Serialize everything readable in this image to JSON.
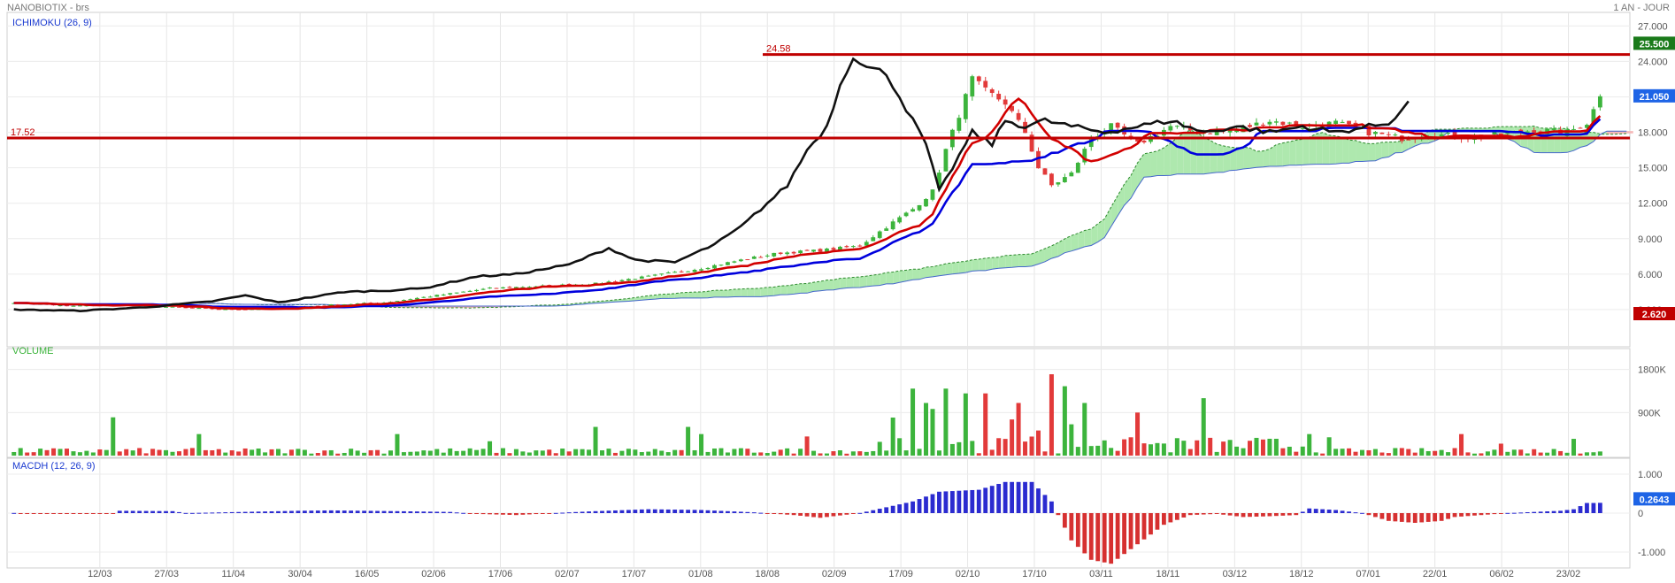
{
  "header": {
    "title": "NANOBIOTIX - brs",
    "period": "1 AN - JOUR"
  },
  "colors": {
    "up": "#3cb43c",
    "down": "#e23a3a",
    "tenkan": "#d20000",
    "kijun": "#0000dd",
    "chikou": "#111111",
    "cloud_bull": "#aee8ae",
    "cloud_bear": "#f5b8b8",
    "macd_pos": "#2b2bd0",
    "macd_neg": "#d63030",
    "hline": "#c00000",
    "badge_last": "#1e64e6",
    "badge_high": "#1a7a1a",
    "badge_low": "#c00000"
  },
  "panels": {
    "price": {
      "label": "ICHIMOKU (26, 9)",
      "yticks": [
        "27.000",
        "24.000",
        "21.000",
        "18.000",
        "15.000",
        "12.000",
        "9.000",
        "6.000",
        "3.000"
      ],
      "ytick_values": [
        27,
        24,
        21,
        18,
        15,
        12,
        9,
        6,
        3
      ]
    },
    "volume": {
      "label": "VOLUME",
      "yticks": [
        "1800K",
        "900K"
      ],
      "ytick_values": [
        1800,
        900
      ]
    },
    "macd": {
      "label": "MACDH (12, 26, 9)",
      "yticks": [
        "1.000",
        "0",
        "-1.000"
      ],
      "ytick_values": [
        1,
        0,
        -1
      ]
    }
  },
  "x_labels": [
    "12/03",
    "27/03",
    "11/04",
    "30/04",
    "16/05",
    "02/06",
    "17/06",
    "02/07",
    "17/07",
    "01/08",
    "18/08",
    "02/09",
    "17/09",
    "02/10",
    "17/10",
    "03/11",
    "18/11",
    "03/12",
    "18/12",
    "07/01",
    "22/01",
    "06/02",
    "23/02"
  ],
  "hlines": [
    {
      "label": "24.58",
      "value": 24.58
    },
    {
      "label": "17.52",
      "value": 17.52
    }
  ],
  "badges": {
    "high": "25.500",
    "last": "21.050",
    "low": "2.620"
  },
  "chart_data": {
    "type": "candlestick",
    "price_range": [
      0,
      28
    ],
    "last_value": 21.05,
    "price_anchors": [
      [
        0,
        3.6
      ],
      [
        8,
        3.3
      ],
      [
        16,
        3.4
      ],
      [
        24,
        3.2
      ],
      [
        32,
        3.0
      ],
      [
        40,
        3.1
      ],
      [
        48,
        3.4
      ],
      [
        56,
        3.6
      ],
      [
        64,
        4.2
      ],
      [
        72,
        4.8
      ],
      [
        80,
        5.0
      ],
      [
        88,
        5.2
      ],
      [
        96,
        5.8
      ],
      [
        104,
        6.5
      ],
      [
        110,
        7.2
      ],
      [
        116,
        7.8
      ],
      [
        122,
        8.0
      ],
      [
        128,
        8.4
      ],
      [
        132,
        10.0
      ],
      [
        136,
        11.5
      ],
      [
        139,
        13.0
      ],
      [
        141,
        16.5
      ],
      [
        143,
        19.5
      ],
      [
        145,
        22.5
      ],
      [
        147,
        21.5
      ],
      [
        150,
        20.5
      ],
      [
        153,
        18.0
      ],
      [
        155,
        15.0
      ],
      [
        157,
        13.5
      ],
      [
        160,
        14.5
      ],
      [
        163,
        17.5
      ],
      [
        166,
        18.5
      ],
      [
        170,
        17.0
      ],
      [
        175,
        18.5
      ],
      [
        180,
        18.0
      ],
      [
        185,
        18.2
      ],
      [
        190,
        19.0
      ],
      [
        195,
        18.5
      ],
      [
        200,
        18.8
      ],
      [
        205,
        18.0
      ],
      [
        210,
        17.5
      ],
      [
        215,
        17.8
      ],
      [
        220,
        17.6
      ],
      [
        225,
        17.8
      ],
      [
        230,
        18.2
      ],
      [
        235,
        18.0
      ],
      [
        238,
        18.8
      ],
      [
        240,
        21.0
      ]
    ],
    "chikou_anchors": [
      [
        0,
        3.0
      ],
      [
        10,
        2.9
      ],
      [
        20,
        3.2
      ],
      [
        30,
        3.7
      ],
      [
        35,
        4.2
      ],
      [
        40,
        3.6
      ],
      [
        50,
        4.5
      ],
      [
        56,
        4.6
      ],
      [
        62,
        4.8
      ],
      [
        70,
        5.8
      ],
      [
        76,
        6.0
      ],
      [
        84,
        6.8
      ],
      [
        90,
        8.2
      ],
      [
        94,
        7.2
      ],
      [
        100,
        7.0
      ],
      [
        106,
        8.5
      ],
      [
        110,
        10.0
      ],
      [
        114,
        12.0
      ],
      [
        117,
        13.5
      ],
      [
        120,
        16.5
      ],
      [
        123,
        18.5
      ],
      [
        125,
        22.0
      ],
      [
        127,
        24.5
      ],
      [
        129,
        23.5
      ],
      [
        132,
        23.0
      ],
      [
        135,
        20.0
      ],
      [
        138,
        17.0
      ],
      [
        140,
        13.0
      ],
      [
        142,
        15.0
      ],
      [
        145,
        18.0
      ],
      [
        148,
        17.0
      ],
      [
        150,
        19.0
      ],
      [
        153,
        18.5
      ],
      [
        156,
        19.0
      ],
      [
        160,
        18.5
      ],
      [
        165,
        18.0
      ],
      [
        170,
        18.5
      ],
      [
        175,
        19.0
      ],
      [
        180,
        18.0
      ],
      [
        185,
        18.5
      ],
      [
        190,
        18.0
      ],
      [
        195,
        18.5
      ],
      [
        200,
        18.0
      ],
      [
        205,
        18.5
      ],
      [
        208,
        18.8
      ],
      [
        211,
        20.5
      ]
    ],
    "series": [
      {
        "name": "Tenkan",
        "params": "9"
      },
      {
        "name": "Kijun",
        "params": "26"
      },
      {
        "name": "Chikou",
        "params": "26"
      }
    ],
    "volume_range": [
      0,
      2200
    ],
    "volume_spikes": [
      [
        15,
        800
      ],
      [
        28,
        450
      ],
      [
        58,
        450
      ],
      [
        72,
        300
      ],
      [
        88,
        600
      ],
      [
        102,
        600
      ],
      [
        104,
        450
      ],
      [
        120,
        400
      ],
      [
        136,
        1400
      ],
      [
        138,
        1100
      ],
      [
        141,
        1400
      ],
      [
        144,
        1300
      ],
      [
        147,
        1300
      ],
      [
        152,
        1100
      ],
      [
        157,
        1700
      ],
      [
        159,
        1450
      ],
      [
        162,
        1100
      ],
      [
        170,
        900
      ],
      [
        180,
        1200
      ],
      [
        196,
        450
      ],
      [
        219,
        450
      ],
      [
        225,
        250
      ],
      [
        236,
        350
      ]
    ],
    "macd_range": [
      -1.4,
      1.3
    ],
    "macd_anchors": [
      [
        0,
        0
      ],
      [
        15,
        -0.01
      ],
      [
        16,
        0.06
      ],
      [
        24,
        0.05
      ],
      [
        26,
        0
      ],
      [
        43,
        0.06
      ],
      [
        48,
        0.07
      ],
      [
        58,
        0.05
      ],
      [
        66,
        0.03
      ],
      [
        70,
        -0.02
      ],
      [
        76,
        -0.05
      ],
      [
        84,
        0.02
      ],
      [
        88,
        0.05
      ],
      [
        96,
        0.1
      ],
      [
        104,
        0.08
      ],
      [
        112,
        0.02
      ],
      [
        118,
        -0.05
      ],
      [
        122,
        -0.12
      ],
      [
        128,
        0
      ],
      [
        132,
        0.15
      ],
      [
        136,
        0.3
      ],
      [
        140,
        0.55
      ],
      [
        146,
        0.6
      ],
      [
        150,
        0.8
      ],
      [
        154,
        0.8
      ],
      [
        157,
        0.3
      ],
      [
        158,
        -0.05
      ],
      [
        160,
        -0.7
      ],
      [
        163,
        -1.2
      ],
      [
        166,
        -1.3
      ],
      [
        170,
        -0.8
      ],
      [
        174,
        -0.3
      ],
      [
        178,
        -0.05
      ],
      [
        182,
        -0.02
      ],
      [
        186,
        -0.1
      ],
      [
        190,
        -0.08
      ],
      [
        194,
        -0.05
      ],
      [
        196,
        0.12
      ],
      [
        200,
        0.08
      ],
      [
        204,
        0
      ],
      [
        208,
        -0.2
      ],
      [
        212,
        -0.25
      ],
      [
        216,
        -0.2
      ],
      [
        218,
        -0.1
      ],
      [
        222,
        -0.05
      ],
      [
        226,
        0
      ],
      [
        230,
        0.03
      ],
      [
        234,
        0.06
      ],
      [
        236,
        0.1
      ],
      [
        238,
        0.26
      ]
    ],
    "macd_last": 0.2643
  }
}
